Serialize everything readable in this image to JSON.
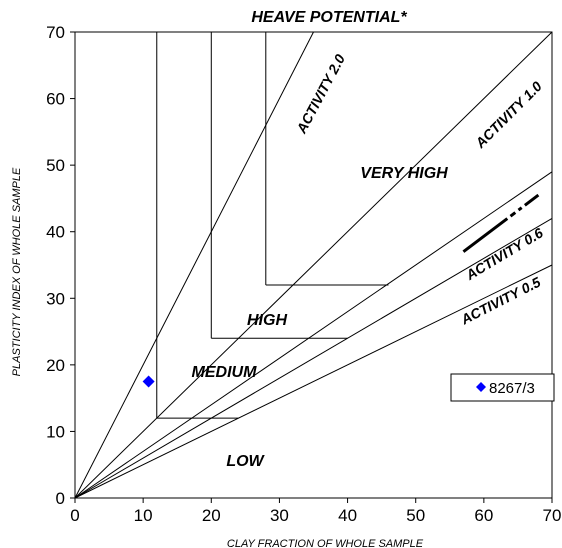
{
  "chart_data": {
    "type": "scatter",
    "title": "HEAVE POTENTIAL*",
    "xlabel": "CLAY FRACTION OF WHOLE SAMPLE",
    "ylabel": "PLASTICITY INDEX OF WHOLE SAMPLE",
    "xlim": [
      0,
      70
    ],
    "ylim": [
      0,
      70
    ],
    "xticks": [
      "0",
      "10",
      "20",
      "30",
      "40",
      "50",
      "60",
      "70"
    ],
    "yticks": [
      "0",
      "10",
      "20",
      "30",
      "40",
      "50",
      "60",
      "70"
    ],
    "grid": false,
    "legend_position": "right",
    "series": [
      {
        "name": "8267/3",
        "color": "#0000ff",
        "marker": "diamond",
        "points": [
          {
            "x": 10.8,
            "y": 17.5
          }
        ]
      }
    ],
    "activity_lines": [
      {
        "label": "ACTIVITY 2.0",
        "slope": 2.0
      },
      {
        "label": "ACTIVITY 1.0",
        "slope": 1.0
      },
      {
        "label": "",
        "slope": 0.7
      },
      {
        "label": "ACTIVITY 0.6",
        "slope": 0.6
      },
      {
        "label": "ACTIVITY 0.5",
        "slope": 0.5
      }
    ],
    "zone_boundaries": [
      {
        "zone": "LOW/MEDIUM",
        "x": 12,
        "y": 12,
        "x_end": 24
      },
      {
        "zone": "MEDIUM/HIGH",
        "x": 20,
        "y": 24,
        "x_end": 40
      },
      {
        "zone": "HIGH/VERY HIGH",
        "x": 28,
        "y": 32,
        "x_end": 46
      }
    ],
    "zone_labels": [
      "VERY HIGH",
      "HIGH",
      "MEDIUM",
      "LOW"
    ],
    "dashed_segment": {
      "x0": 57,
      "y0": 37,
      "x1": 68,
      "y1": 45.5
    }
  }
}
